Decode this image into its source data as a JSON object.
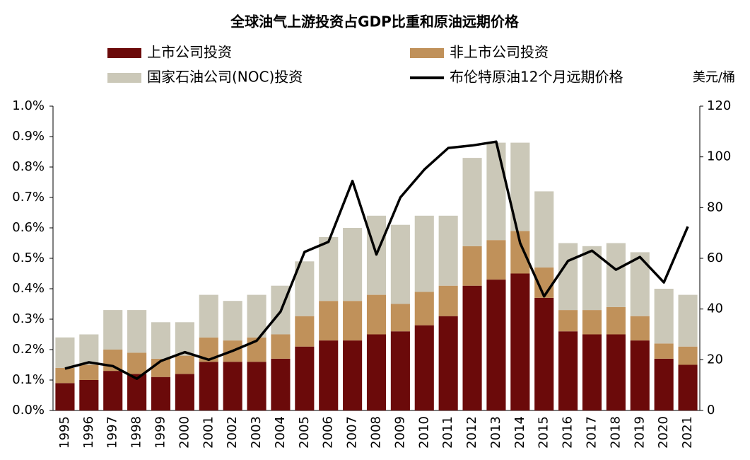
{
  "chart_data": {
    "type": "bar-line",
    "title": "全球油气上游投资占GDP比重和原油远期价格",
    "y2_label": "美元/桶",
    "categories": [
      "1995",
      "1996",
      "1997",
      "1998",
      "1999",
      "2000",
      "2001",
      "2002",
      "2003",
      "2004",
      "2005",
      "2006",
      "2007",
      "2008",
      "2009",
      "2010",
      "2011",
      "2012",
      "2013",
      "2014",
      "2015",
      "2016",
      "2017",
      "2018",
      "2019",
      "2020",
      "2021"
    ],
    "series": [
      {
        "name": "上市公司投资",
        "type": "bar",
        "color": "#6b0a0a",
        "values": [
          0.09,
          0.1,
          0.13,
          0.12,
          0.11,
          0.12,
          0.16,
          0.16,
          0.16,
          0.17,
          0.21,
          0.23,
          0.23,
          0.25,
          0.26,
          0.28,
          0.31,
          0.41,
          0.43,
          0.45,
          0.37,
          0.26,
          0.25,
          0.25,
          0.23,
          0.17,
          0.15
        ]
      },
      {
        "name": "非上市公司投资",
        "type": "bar",
        "color": "#c0915a",
        "values": [
          0.05,
          0.05,
          0.07,
          0.07,
          0.06,
          0.06,
          0.08,
          0.07,
          0.08,
          0.08,
          0.1,
          0.13,
          0.13,
          0.13,
          0.09,
          0.11,
          0.1,
          0.13,
          0.13,
          0.14,
          0.1,
          0.07,
          0.08,
          0.09,
          0.08,
          0.05,
          0.06
        ]
      },
      {
        "name": "国家石油公司(NOC)投资",
        "type": "bar",
        "color": "#cbc8b8",
        "values": [
          0.1,
          0.1,
          0.13,
          0.14,
          0.12,
          0.11,
          0.14,
          0.13,
          0.14,
          0.16,
          0.18,
          0.21,
          0.24,
          0.26,
          0.26,
          0.25,
          0.23,
          0.29,
          0.32,
          0.29,
          0.25,
          0.22,
          0.21,
          0.21,
          0.21,
          0.18,
          0.17
        ]
      },
      {
        "name": "布伦特原油12个月远期价格",
        "type": "line",
        "axis": "y2",
        "color": "#000000",
        "values": [
          16.5,
          19,
          17.5,
          12.5,
          19.5,
          23,
          20,
          23.5,
          27.5,
          39,
          62.5,
          66.5,
          90.5,
          61.5,
          84,
          95,
          103.5,
          104.5,
          106,
          66,
          45,
          59,
          63,
          55.5,
          60.5,
          50.5,
          72.5
        ]
      }
    ],
    "ylim": [
      0,
      1.0
    ],
    "yticks": [
      {
        "value": 0,
        "label": "0.0%"
      },
      {
        "value": 0.1,
        "label": "0.1%"
      },
      {
        "value": 0.2,
        "label": "0.2%"
      },
      {
        "value": 0.3,
        "label": "0.3%"
      },
      {
        "value": 0.4,
        "label": "0.4%"
      },
      {
        "value": 0.5,
        "label": "0.5%"
      },
      {
        "value": 0.6,
        "label": "0.6%"
      },
      {
        "value": 0.7,
        "label": "0.7%"
      },
      {
        "value": 0.8,
        "label": "0.8%"
      },
      {
        "value": 0.9,
        "label": "0.9%"
      },
      {
        "value": 1.0,
        "label": "1.0%"
      }
    ],
    "y2lim": [
      0,
      120
    ],
    "y2ticks": [
      0,
      20,
      40,
      60,
      80,
      100,
      120
    ],
    "grid": false
  }
}
